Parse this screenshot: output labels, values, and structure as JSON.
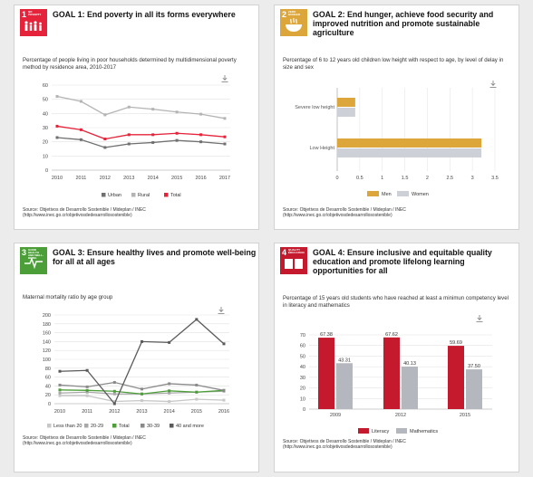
{
  "panels": [
    {
      "id": "goal1",
      "badge": {
        "number": "1",
        "text": "NO POVERTY",
        "color": "#e5243b"
      },
      "title": "GOAL 1: End poverty in all its forms everywhere",
      "subtitle": "Percentage of people living in poor households determined by multidimensional poverty method by residence area, 2010-2017",
      "source_lines": [
        "Source: Objetivos de Desarrollo Sostenible / Mideplan / INEC",
        "(http://www.inec.go.cr/objetivosdedesarrollosostenible)"
      ]
    },
    {
      "id": "goal2",
      "badge": {
        "number": "2",
        "text": "ZERO HUNGER",
        "color": "#dda63a"
      },
      "title": "GOAL 2: End hunger, achieve food security and improved nutrition and promote sustainable agriculture",
      "subtitle": "Percentage of 6 to 12 years old children low height with respect to age, by level of delay in size and sex",
      "source_lines": [
        "Source: Objetivos de Desarrollo Sostenible / Mideplan / INEC",
        "(http://www.inec.go.cr/objetivosdedesarrollosostenible)"
      ]
    },
    {
      "id": "goal3",
      "badge": {
        "number": "3",
        "text": "GOOD HEALTH AND WELL-BEING",
        "color": "#4c9f38"
      },
      "title": "GOAL 3: Ensure healthy lives and promote well-being for all at all ages",
      "subtitle": "Maternal mortality ratio by age group",
      "source_lines": [
        "Source: Objetivos de Desarrollo Sostenible / Mideplan / INEC",
        "(http://www.inec.go.cr/objetivosdedesarrollosostenible)"
      ]
    },
    {
      "id": "goal4",
      "badge": {
        "number": "4",
        "text": "QUALITY EDUCATION",
        "color": "#c5192d"
      },
      "title": "GOAL 4: Ensure inclusive and equitable quality education and promote lifelong learning opportunities for all",
      "subtitle": "Percentage of 15 years old students who have reached at least a minimun competency level in literacy and mathematics",
      "source_lines": [
        "Source: Objetivos de Desarrollo Sostenible / Mideplan / INEC",
        "(http://www.inec.go.cr/objetivosdedesarrollosostenible)"
      ]
    }
  ],
  "chart_data": [
    {
      "type": "line",
      "x": [
        "2010",
        "2011",
        "2012",
        "2013",
        "2014",
        "2015",
        "2016",
        "2017"
      ],
      "ylim": [
        0,
        60
      ],
      "yticks": [
        "0",
        "10",
        "20",
        "30",
        "40",
        "50",
        "60"
      ],
      "series": [
        {
          "name": "Urban",
          "color": "#707070",
          "values": [
            23,
            21.5,
            16,
            18.5,
            19.5,
            21,
            20,
            18.5
          ]
        },
        {
          "name": "Rural",
          "color": "#b4b4b4",
          "values": [
            52,
            48.5,
            39,
            44.5,
            43,
            41,
            39.5,
            36.5
          ]
        },
        {
          "name": "Total",
          "color": "#e5243b",
          "values": [
            31,
            28.5,
            22,
            25,
            25,
            26,
            25,
            23.5
          ]
        }
      ]
    },
    {
      "type": "bar",
      "orientation": "horizontal",
      "categories": [
        "Severe low height",
        "Low Height"
      ],
      "xlim": [
        0,
        3.5
      ],
      "xticks": [
        "0",
        "0.5",
        "1",
        "1.5",
        "2",
        "2.5",
        "3",
        "3.5"
      ],
      "series": [
        {
          "name": "Men",
          "color": "#dda63a",
          "values": [
            0.4,
            3.2
          ]
        },
        {
          "name": "Women",
          "color": "#cdd0d6",
          "values": [
            0.4,
            3.2
          ]
        }
      ]
    },
    {
      "type": "line",
      "x": [
        "2010",
        "2011",
        "2012",
        "2013",
        "2014",
        "2015",
        "2016"
      ],
      "ylim": [
        0,
        200
      ],
      "yticks": [
        "0",
        "20",
        "40",
        "60",
        "80",
        "100",
        "120",
        "140",
        "160",
        "180",
        "200"
      ],
      "series": [
        {
          "name": "Less than 20",
          "color": "#c8c8c8",
          "values": [
            18,
            18,
            5,
            7,
            5,
            10,
            8
          ]
        },
        {
          "name": "20-29",
          "color": "#a8a8a8",
          "values": [
            24,
            26,
            22,
            22,
            24,
            26,
            28
          ]
        },
        {
          "name": "Total",
          "color": "#4c9f38",
          "values": [
            31,
            30,
            28,
            22,
            29,
            26,
            30
          ]
        },
        {
          "name": "30-39",
          "color": "#8a8a8a",
          "values": [
            42,
            38,
            48,
            33,
            45,
            42,
            30
          ]
        },
        {
          "name": "40 and more",
          "color": "#5a5a5a",
          "values": [
            73,
            75,
            0,
            140,
            138,
            190,
            135
          ]
        }
      ]
    },
    {
      "type": "bar",
      "categories": [
        "2009",
        "2012",
        "2015"
      ],
      "ylim": [
        0,
        70
      ],
      "yticks": [
        "0",
        "10",
        "20",
        "30",
        "40",
        "50",
        "60",
        "70"
      ],
      "series": [
        {
          "name": "Literacy",
          "color": "#c5192d",
          "values": [
            67.38,
            67.62,
            59.69
          ],
          "labels": [
            "67.38",
            "67.62",
            "59.69"
          ]
        },
        {
          "name": "Mathematics",
          "color": "#b4b8be",
          "values": [
            43.31,
            40.13,
            37.5
          ],
          "labels": [
            "43.31",
            "40.13",
            "37.50"
          ]
        }
      ]
    }
  ]
}
